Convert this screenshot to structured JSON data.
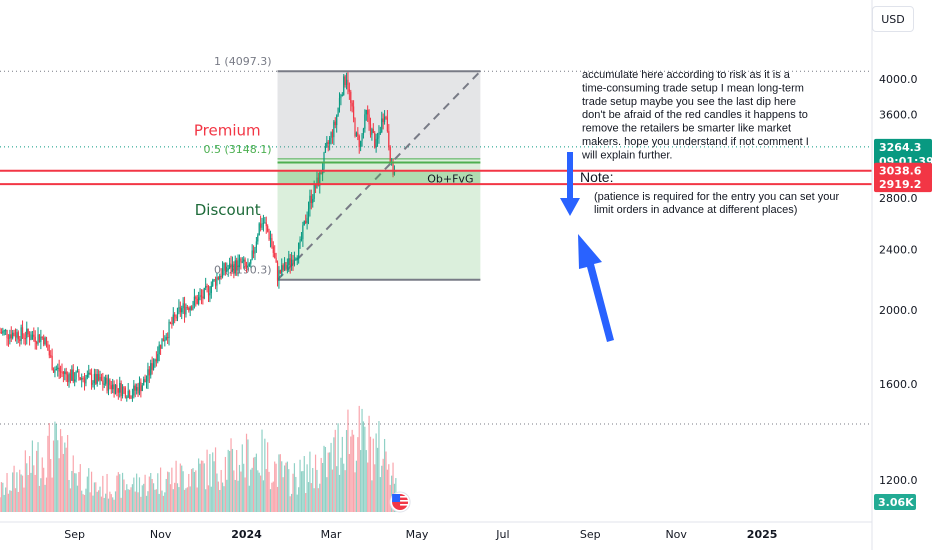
{
  "currency_button": "USD",
  "chart_data": {
    "type": "candlestick",
    "y_scale": "log",
    "ylim": [
      1090,
      4500
    ],
    "y_ticks": [
      {
        "value": 4000,
        "label": "4000.0"
      },
      {
        "value": 3600,
        "label": "3600.0"
      },
      {
        "value": 2800,
        "label": "2800.0"
      },
      {
        "value": 2400,
        "label": "2400.0"
      },
      {
        "value": 2000,
        "label": "2000.0"
      },
      {
        "value": 1600,
        "label": "1600.0"
      },
      {
        "value": 1200,
        "label": "1200.0"
      }
    ],
    "x_ticks": [
      {
        "date": "2023-09-01",
        "label": "Sep",
        "bold": false
      },
      {
        "date": "2023-11-01",
        "label": "Nov",
        "bold": false
      },
      {
        "date": "2024-01-01",
        "label": "2024",
        "bold": true
      },
      {
        "date": "2024-03-01",
        "label": "Mar",
        "bold": false
      },
      {
        "date": "2024-05-01",
        "label": "May",
        "bold": false
      },
      {
        "date": "2024-07-01",
        "label": "Jul",
        "bold": false
      },
      {
        "date": "2024-09-01",
        "label": "Sep",
        "bold": false
      },
      {
        "date": "2024-11-01",
        "label": "Nov",
        "bold": false
      },
      {
        "date": "2025-01-01",
        "label": "2025",
        "bold": true
      }
    ],
    "x_range": [
      "2023-07-10",
      "2025-03-20"
    ],
    "price_keypoints": [
      [
        "2023-07-10",
        1870
      ],
      [
        "2023-07-25",
        1860
      ],
      [
        "2023-08-10",
        1840
      ],
      [
        "2023-08-17",
        1680
      ],
      [
        "2023-08-28",
        1640
      ],
      [
        "2023-09-10",
        1630
      ],
      [
        "2023-09-25",
        1600
      ],
      [
        "2023-10-12",
        1560
      ],
      [
        "2023-10-22",
        1620
      ],
      [
        "2023-11-01",
        1810
      ],
      [
        "2023-11-15",
        2000
      ],
      [
        "2023-12-01",
        2080
      ],
      [
        "2023-12-15",
        2250
      ],
      [
        "2023-12-28",
        2300
      ],
      [
        "2024-01-03",
        2250
      ],
      [
        "2024-01-10",
        2580
      ],
      [
        "2024-01-13",
        2600
      ],
      [
        "2024-01-18",
        2480
      ],
      [
        "2024-01-23",
        2220
      ],
      [
        "2024-01-31",
        2300
      ],
      [
        "2024-02-08",
        2420
      ],
      [
        "2024-02-15",
        2780
      ],
      [
        "2024-02-22",
        2980
      ],
      [
        "2024-02-27",
        3250
      ],
      [
        "2024-03-04",
        3500
      ],
      [
        "2024-03-08",
        3850
      ],
      [
        "2024-03-12",
        4050
      ],
      [
        "2024-03-15",
        3700
      ],
      [
        "2024-03-19",
        3350
      ],
      [
        "2024-03-22",
        3300
      ],
      [
        "2024-03-26",
        3600
      ],
      [
        "2024-03-29",
        3450
      ],
      [
        "2024-04-02",
        3270
      ],
      [
        "2024-04-08",
        3650
      ],
      [
        "2024-04-10",
        3450
      ],
      [
        "2024-04-13",
        3050
      ],
      [
        "2024-04-16",
        3010
      ]
    ],
    "volume_keypoints": [
      [
        "2023-07-10",
        0.25
      ],
      [
        "2023-08-17",
        0.8
      ],
      [
        "2023-09-15",
        0.3
      ],
      [
        "2023-10-20",
        0.35
      ],
      [
        "2023-11-15",
        0.45
      ],
      [
        "2024-01-10",
        0.7
      ],
      [
        "2024-02-01",
        0.4
      ],
      [
        "2024-02-28",
        0.6
      ],
      [
        "2024-03-12",
        1.0
      ],
      [
        "2024-04-13",
        0.65
      ],
      [
        "2024-04-16",
        0.3
      ]
    ],
    "price_lines": [
      {
        "value": 3264.3,
        "style": "dotted",
        "color": "#089981"
      },
      {
        "value": 4097.3,
        "style": "dotted",
        "color": "#787b86"
      },
      {
        "value": 1420,
        "style": "dotted",
        "color": "#787b86"
      }
    ],
    "price_tags": [
      {
        "value": 3264.3,
        "label": "3264.3",
        "sub_label": "09:01:39",
        "color": "#089981"
      },
      {
        "value": 3038.6,
        "label": "3038.6",
        "color": "#f23645"
      },
      {
        "value": 2919.2,
        "label": "2919.2",
        "color": "#f23645"
      }
    ],
    "volume_tag": {
      "label": "3.06K",
      "color": "#22ab94"
    },
    "fib_retracement": {
      "start": "2024-01-23",
      "end": "2024-06-15",
      "low": 2190,
      "high": 4097.3,
      "top_label": "1 (4097.3)",
      "mid_label": "0.5 (3148.1)",
      "mid_value": 3148.1,
      "bottom_label": "0 (2190.3)"
    },
    "ob_fvg_zone": {
      "top": 3038.6,
      "bottom": 2919.2,
      "label": "Ob+FvG",
      "start": "2024-01-23",
      "end": "2024-06-15"
    },
    "red_lines": [
      3038.6,
      2919.2
    ],
    "green_line": 3115,
    "zone_labels": [
      {
        "text": "Premium",
        "value": 3380,
        "date": "2024-01-11",
        "color": "#f23645"
      },
      {
        "text": "Discount",
        "value": 2660,
        "date": "2024-01-11",
        "color": "#1e6b3a"
      }
    ],
    "notes": {
      "main": [
        "accumulate here according to risk as it is a",
        "time-consuming trade setup I mean long-term",
        "trade setup maybe you see the last dip here",
        "don't be afraid of the red candles it happens to",
        "remove the retailers be smarter like market",
        "makers. hope you understand if not comment I",
        "will explain further."
      ],
      "title": "Note:",
      "sub": [
        "(patience is required for the entry you can set your",
        "limit orders in advance at different places)"
      ]
    }
  }
}
